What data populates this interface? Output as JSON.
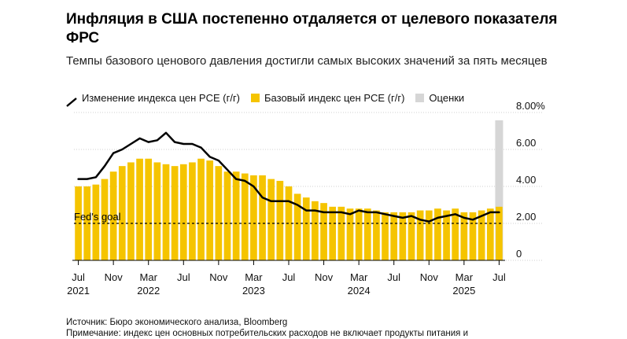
{
  "title": "Инфляция в США постепенно отдаляется от целевого показателя ФРС",
  "subtitle": "Темпы базового ценового давления достигли самых высоких значений за пять месяцев",
  "legend": {
    "line": "Изменение индекса цен PCE (г/г)",
    "bar": "Базовый индекс цен PCE (г/г)",
    "estimate": "Оценки"
  },
  "source": "Источник: Бюро экономического анализа, Bloomberg",
  "note": "Примечание: индекс цен основных потребительских расходов не включает продукты питания и",
  "colors": {
    "bar": "#f5c400",
    "line": "#000000",
    "estimate": "#d6d6d6",
    "grid": "#cfcfcf"
  },
  "chart_data": {
    "type": "bar",
    "x": [
      "2021-07",
      "2021-08",
      "2021-09",
      "2021-10",
      "2021-11",
      "2021-12",
      "2022-01",
      "2022-02",
      "2022-03",
      "2022-04",
      "2022-05",
      "2022-06",
      "2022-07",
      "2022-08",
      "2022-09",
      "2022-10",
      "2022-11",
      "2022-12",
      "2023-01",
      "2023-02",
      "2023-03",
      "2023-04",
      "2023-05",
      "2023-06",
      "2023-07",
      "2023-08",
      "2023-09",
      "2023-10",
      "2023-11",
      "2023-12",
      "2024-01",
      "2024-02",
      "2024-03",
      "2024-04",
      "2024-05",
      "2024-06",
      "2024-07",
      "2024-08",
      "2024-09",
      "2024-10",
      "2024-11",
      "2024-12",
      "2025-01",
      "2025-02",
      "2025-03",
      "2025-04",
      "2025-05",
      "2025-06",
      "2025-07"
    ],
    "series": [
      {
        "name": "Базовый индекс цен PCE (г/г)",
        "type": "bar",
        "values": [
          4.0,
          4.0,
          4.1,
          4.4,
          4.8,
          5.1,
          5.3,
          5.5,
          5.5,
          5.3,
          5.2,
          5.1,
          5.2,
          5.3,
          5.5,
          5.4,
          5.1,
          4.8,
          4.8,
          4.7,
          4.6,
          4.6,
          4.4,
          4.3,
          4.0,
          3.6,
          3.4,
          3.2,
          3.1,
          2.9,
          2.9,
          2.8,
          2.8,
          2.8,
          2.7,
          2.6,
          2.6,
          2.6,
          2.6,
          2.7,
          2.7,
          2.8,
          2.7,
          2.8,
          2.6,
          2.6,
          2.7,
          2.8,
          2.9
        ]
      },
      {
        "name": "Изменение индекса цен PCE (г/г)",
        "type": "line",
        "values": [
          4.4,
          4.4,
          4.5,
          5.1,
          5.8,
          6.0,
          6.3,
          6.6,
          6.4,
          6.5,
          6.9,
          6.4,
          6.3,
          6.3,
          6.1,
          5.6,
          5.4,
          4.9,
          4.4,
          4.3,
          4.0,
          3.4,
          3.2,
          3.2,
          3.2,
          3.0,
          2.7,
          2.7,
          2.6,
          2.6,
          2.6,
          2.5,
          2.7,
          2.6,
          2.6,
          2.5,
          2.4,
          2.3,
          2.4,
          2.2,
          2.1,
          2.3,
          2.4,
          2.5,
          2.3,
          2.2,
          2.4,
          2.6,
          2.6
        ]
      }
    ],
    "estimate": {
      "x": "2025-07",
      "label": "Оценки"
    },
    "reference_line": {
      "value": 2.0,
      "label": "Fed's goal",
      "style": "dashed"
    },
    "ylim": [
      0,
      8
    ],
    "yticks": [
      0,
      2,
      4,
      6,
      8
    ],
    "ytick_labels": [
      "0",
      "2.00",
      "4.00",
      "6.00",
      "8.00%"
    ],
    "xtick_labels": [
      {
        "x": "2021-07",
        "label": "Jul",
        "year": "2021"
      },
      {
        "x": "2021-11",
        "label": "Nov",
        "year": ""
      },
      {
        "x": "2022-03",
        "label": "Mar",
        "year": "2022"
      },
      {
        "x": "2022-07",
        "label": "Jul",
        "year": ""
      },
      {
        "x": "2022-11",
        "label": "Nov",
        "year": ""
      },
      {
        "x": "2023-03",
        "label": "Mar",
        "year": "2023"
      },
      {
        "x": "2023-07",
        "label": "Jul",
        "year": ""
      },
      {
        "x": "2023-11",
        "label": "Nov",
        "year": ""
      },
      {
        "x": "2024-03",
        "label": "Mar",
        "year": "2024"
      },
      {
        "x": "2024-07",
        "label": "Jul",
        "year": ""
      },
      {
        "x": "2024-11",
        "label": "Nov",
        "year": ""
      },
      {
        "x": "2025-03",
        "label": "Mar",
        "year": "2025"
      },
      {
        "x": "2025-07",
        "label": "Jul",
        "year": ""
      }
    ],
    "grid": true,
    "legend_position": "top"
  }
}
